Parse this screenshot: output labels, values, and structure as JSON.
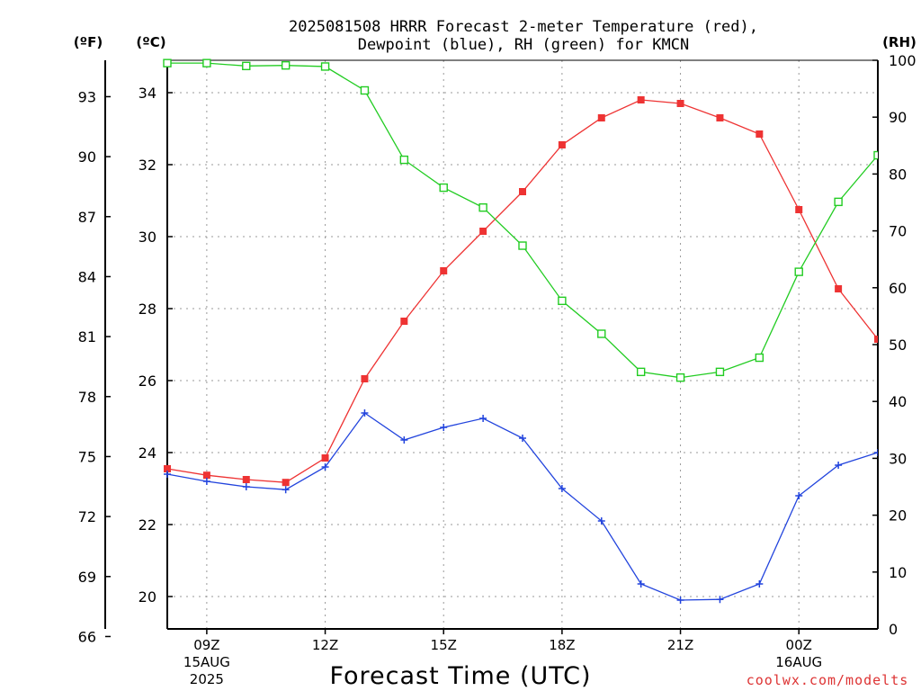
{
  "chart_data": {
    "type": "line",
    "title_line1": "2025081508 HRRR Forecast 2-meter Temperature (red),",
    "title_line2": "Dewpoint (blue), RH (green) for KMCN",
    "xlabel": "Forecast Time (UTC)",
    "credit": "coolwx.com/modelts",
    "unit_f": "(ºF)",
    "unit_c": "(ºC)",
    "unit_rh": "(RH)",
    "x": [
      "08Z",
      "09Z",
      "10Z",
      "11Z",
      "12Z",
      "13Z",
      "14Z",
      "15Z",
      "16Z",
      "17Z",
      "18Z",
      "19Z",
      "20Z",
      "21Z",
      "22Z",
      "23Z",
      "00Z",
      "01Z",
      "02Z"
    ],
    "xlim": [
      0,
      18
    ],
    "x_ticks": [
      {
        "idx": 1,
        "label": "09Z",
        "sub1": "15AUG",
        "sub2": "2025"
      },
      {
        "idx": 4,
        "label": "12Z",
        "sub1": "",
        "sub2": ""
      },
      {
        "idx": 7,
        "label": "15Z",
        "sub1": "",
        "sub2": ""
      },
      {
        "idx": 10,
        "label": "18Z",
        "sub1": "",
        "sub2": ""
      },
      {
        "idx": 13,
        "label": "21Z",
        "sub1": "",
        "sub2": ""
      },
      {
        "idx": 16,
        "label": "00Z",
        "sub1": "16AUG",
        "sub2": ""
      }
    ],
    "ylim_c": [
      19.1,
      34.9
    ],
    "c_ticks": [
      20,
      22,
      24,
      26,
      28,
      30,
      32,
      34
    ],
    "f_ticks": [
      66,
      69,
      72,
      75,
      78,
      81,
      84,
      87,
      90,
      93
    ],
    "rh_ticks": [
      0,
      10,
      20,
      30,
      40,
      50,
      60,
      70,
      80,
      90,
      100
    ],
    "series": [
      {
        "key": "temperature",
        "color": "#ee3333",
        "marker": "filled-square",
        "axis": "c",
        "values": [
          23.55,
          23.37,
          23.25,
          23.17,
          23.85,
          26.05,
          27.65,
          29.05,
          30.15,
          31.25,
          32.55,
          33.3,
          33.8,
          33.7,
          33.3,
          32.85,
          30.75,
          28.55,
          27.15
        ]
      },
      {
        "key": "dewpoint",
        "color": "#2244dd",
        "marker": "plus",
        "axis": "c",
        "values": [
          23.4,
          23.2,
          23.05,
          22.97,
          23.6,
          25.1,
          24.35,
          24.7,
          24.95,
          24.4,
          23.0,
          22.1,
          20.35,
          19.9,
          19.92,
          20.35,
          22.8,
          23.65,
          24.0
        ]
      },
      {
        "key": "rh",
        "color": "#22cc22",
        "marker": "open-square",
        "axis": "rh",
        "values": [
          99.5,
          99.5,
          99.0,
          99.1,
          98.9,
          94.7,
          82.5,
          77.6,
          74.1,
          67.4,
          57.7,
          51.9,
          45.2,
          44.2,
          45.2,
          47.7,
          62.8,
          75.1,
          83.3
        ]
      }
    ]
  }
}
